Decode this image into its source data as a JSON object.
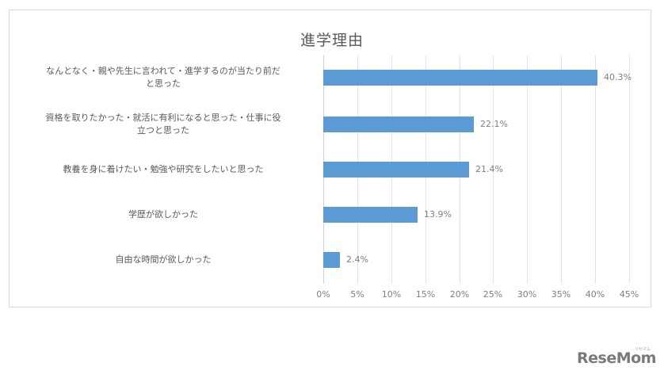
{
  "chart_data": {
    "type": "bar",
    "orientation": "horizontal",
    "title": "進学理由",
    "xlabel": "",
    "ylabel": "",
    "xlim": [
      0,
      45
    ],
    "grid": true,
    "legend": null,
    "bar_color": "#5b9bd5",
    "categories": [
      "なんとなく・親や先生に言われて・進学するのが当たり前だと思った",
      "資格を取りたかった・就活に有利になると思った・仕事に役立つと思った",
      "教養を身に着けたい・勉強や研究をしたいと思った",
      "学歴が欲しかった",
      "自由な時間が欲しかった"
    ],
    "values": [
      40.3,
      22.1,
      21.4,
      13.9,
      2.4
    ],
    "data_labels": [
      "40.3%",
      "22.1%",
      "21.4%",
      "13.9%",
      "2.4%"
    ],
    "x_ticks": [
      "0%",
      "5%",
      "10%",
      "15%",
      "20%",
      "25%",
      "30%",
      "35%",
      "40%",
      "45%"
    ]
  },
  "category_lines": [
    [
      "なんとなく・親や先生に言われて・進学するのが当たり前だ",
      "と思った"
    ],
    [
      "資格を取りたかった・就活に有利になると思った・仕事に役",
      "立つと思った"
    ],
    [
      "教養を身に着けたい・勉強や研究をしたいと思った"
    ],
    [
      "学歴が欲しかった"
    ],
    [
      "自由な時間が欲しかった"
    ]
  ],
  "watermark": {
    "text": "ReseMom",
    "subtext": "リセマム",
    "color": "#7a7a7a"
  }
}
